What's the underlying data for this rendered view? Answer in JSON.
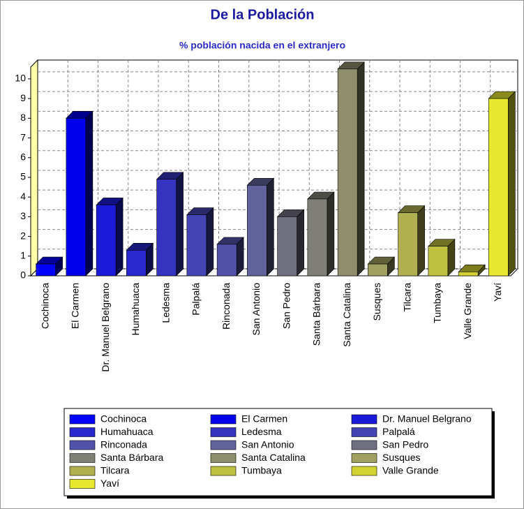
{
  "chart_data": {
    "type": "bar3d",
    "title": "De la Población",
    "subtitle": "% población nacida en el extranjero",
    "categories": [
      "Cochinoca",
      "El Carmen",
      "Dr. Manuel Belgrano",
      "Humahuaca",
      "Ledesma",
      "Palpalá",
      "Rinconada",
      "San Antonio",
      "San Pedro",
      "Santa Bárbara",
      "Santa Catalina",
      "Susques",
      "Tilcara",
      "Tumbaya",
      "Valle Grande",
      "Yaví"
    ],
    "values": [
      0.6,
      8.0,
      3.6,
      1.3,
      4.9,
      3.1,
      1.6,
      4.6,
      3.0,
      3.9,
      10.5,
      0.6,
      3.2,
      1.5,
      0.2,
      9.0
    ],
    "colors": [
      "#0000ff",
      "#0000ee",
      "#1a1ad8",
      "#2828cc",
      "#3434c0",
      "#4444b4",
      "#5252aa",
      "#62629c",
      "#707080",
      "#808078",
      "#8e8e6c",
      "#a0a060",
      "#b0b050",
      "#c0c040",
      "#d2d232",
      "#e8e830"
    ],
    "ylim": [
      0,
      10.6
    ],
    "yticks": [
      0,
      1,
      2,
      3,
      4,
      5,
      6,
      7,
      8,
      9,
      10
    ],
    "grid": true,
    "legend": "bottom"
  }
}
